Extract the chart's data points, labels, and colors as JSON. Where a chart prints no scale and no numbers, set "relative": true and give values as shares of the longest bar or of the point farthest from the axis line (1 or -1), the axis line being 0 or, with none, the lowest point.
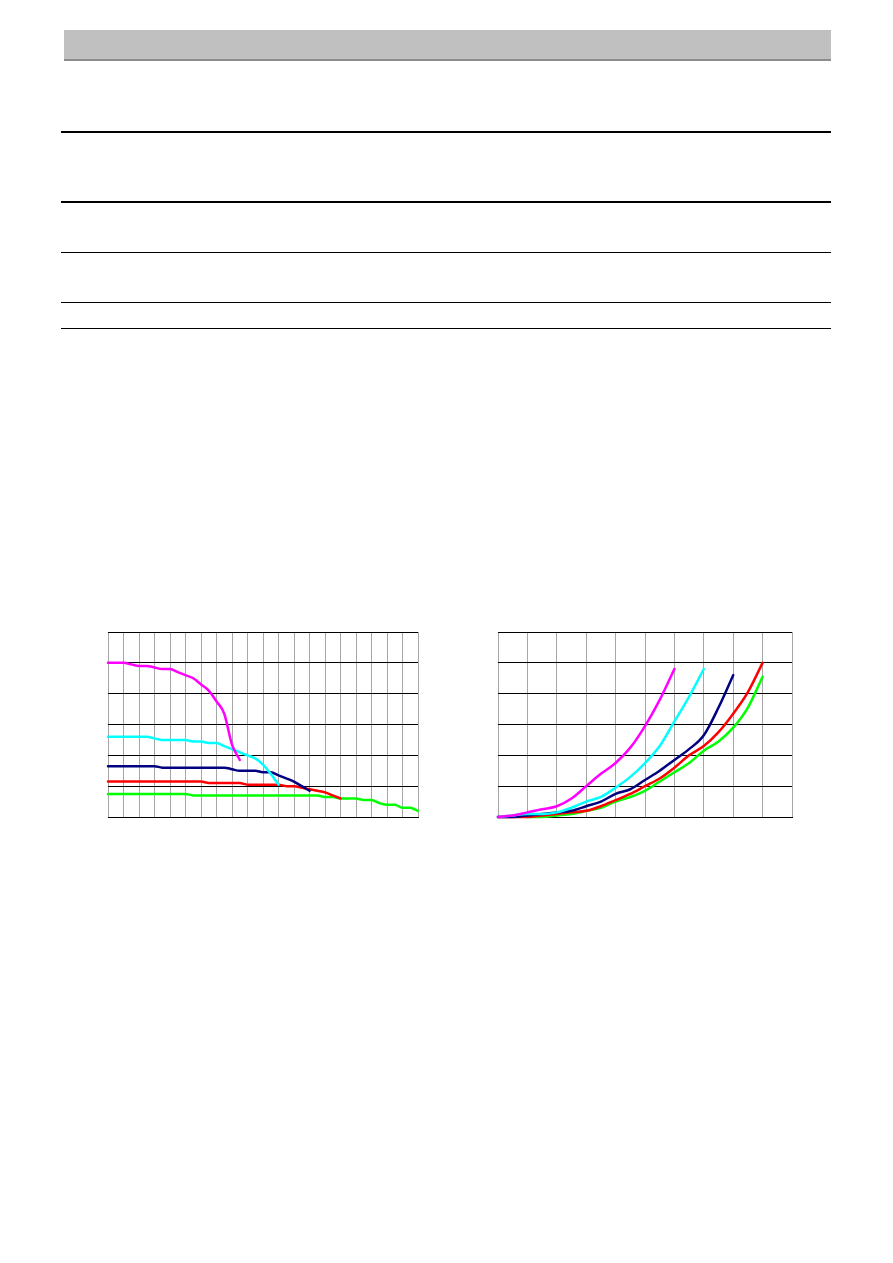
{
  "chart_data": [
    {
      "type": "line",
      "relative": true,
      "grid": true,
      "marker": "none",
      "line_style": "solid",
      "categories": [
        null,
        null,
        null,
        null,
        null,
        null,
        null,
        null,
        null,
        null,
        null,
        null,
        null,
        null,
        null,
        null,
        null,
        null,
        null,
        null,
        null,
        null,
        null,
        null,
        null,
        null,
        null,
        null,
        null,
        null,
        null,
        null,
        null,
        null,
        null,
        null,
        null,
        null,
        null,
        null,
        null
      ],
      "series": [
        {
          "color": "#ff00ff",
          "values": [
            1,
            1,
            1,
            0.99,
            0.98,
            0.98,
            0.97,
            0.96,
            0.96,
            0.94,
            0.92,
            0.9,
            0.86,
            0.82,
            0.75,
            0.67,
            0.47,
            0.37,
            null,
            null,
            null,
            null,
            null,
            null,
            null,
            null,
            null,
            null,
            null,
            null,
            null,
            null,
            null,
            null,
            null,
            null,
            null,
            null,
            null,
            null,
            null
          ]
        },
        {
          "color": "#00ffff",
          "values": [
            0.52,
            0.52,
            0.52,
            0.52,
            0.52,
            0.52,
            0.51,
            0.5,
            0.5,
            0.5,
            0.5,
            0.49,
            0.49,
            0.48,
            0.48,
            0.46,
            0.44,
            0.42,
            0.4,
            0.38,
            0.34,
            0.28,
            0.21,
            null,
            null,
            null,
            null,
            null,
            null,
            null,
            null,
            null,
            null,
            null,
            null,
            null,
            null,
            null,
            null,
            null,
            null
          ]
        },
        {
          "color": "#000080",
          "values": [
            0.33,
            0.33,
            0.33,
            0.33,
            0.33,
            0.33,
            0.33,
            0.32,
            0.32,
            0.32,
            0.32,
            0.32,
            0.32,
            0.32,
            0.32,
            0.32,
            0.31,
            0.3,
            0.3,
            0.3,
            0.29,
            0.29,
            0.27,
            0.25,
            0.23,
            0.2,
            0.17,
            null,
            null,
            null,
            null,
            null,
            null,
            null,
            null,
            null,
            null,
            null,
            null,
            null,
            null
          ]
        },
        {
          "color": "#ff0000",
          "values": [
            0.23,
            0.23,
            0.23,
            0.23,
            0.23,
            0.23,
            0.23,
            0.23,
            0.23,
            0.23,
            0.23,
            0.23,
            0.23,
            0.22,
            0.22,
            0.22,
            0.22,
            0.22,
            0.21,
            0.21,
            0.21,
            0.21,
            0.21,
            0.2,
            0.2,
            0.19,
            0.18,
            0.17,
            0.16,
            0.14,
            0.12,
            null,
            null,
            null,
            null,
            null,
            null,
            null,
            null,
            null,
            null
          ]
        },
        {
          "color": "#00ff00",
          "values": [
            0.15,
            0.15,
            0.15,
            0.15,
            0.15,
            0.15,
            0.15,
            0.15,
            0.15,
            0.15,
            0.15,
            0.14,
            0.14,
            0.14,
            0.14,
            0.14,
            0.14,
            0.14,
            0.14,
            0.14,
            0.14,
            0.14,
            0.14,
            0.14,
            0.14,
            0.14,
            0.14,
            0.14,
            0.13,
            0.13,
            0.12,
            0.12,
            0.12,
            0.11,
            0.11,
            0.09,
            0.08,
            0.08,
            0.06,
            0.06,
            0.04
          ]
        }
      ]
    },
    {
      "type": "line",
      "relative": true,
      "grid": true,
      "marker": "none",
      "line_style": "solid",
      "categories": [
        null,
        null,
        null,
        null,
        null,
        null,
        null,
        null,
        null,
        null,
        null,
        null,
        null,
        null,
        null,
        null,
        null,
        null,
        null,
        null,
        null
      ],
      "series": [
        {
          "color": "#ff00ff",
          "values": [
            0,
            0.01,
            0.03,
            0.05,
            0.07,
            0.12,
            0.2,
            0.28,
            0.35,
            0.45,
            0.59,
            0.76,
            0.96,
            null,
            null,
            null,
            null,
            null,
            null,
            null,
            null
          ]
        },
        {
          "color": "#00ffff",
          "values": [
            0,
            0.01,
            0.02,
            0.02,
            0.03,
            0.06,
            0.1,
            0.13,
            0.19,
            0.26,
            0.35,
            0.46,
            0.62,
            0.78,
            0.96,
            null,
            null,
            null,
            null,
            null,
            null
          ]
        },
        {
          "color": "#000080",
          "values": [
            0,
            0,
            0.01,
            0.02,
            0.03,
            0.04,
            0.07,
            0.1,
            0.15,
            0.18,
            0.24,
            0.3,
            0.37,
            0.44,
            0.53,
            0.71,
            0.92,
            null,
            null,
            null,
            null
          ]
        },
        {
          "color": "#ff0000",
          "values": [
            0,
            0,
            0,
            0.01,
            0.02,
            0.03,
            0.04,
            0.07,
            0.11,
            0.15,
            0.2,
            0.25,
            0.32,
            0.4,
            0.46,
            0.55,
            0.67,
            0.81,
            1,
            null,
            null
          ]
        },
        {
          "color": "#00ff00",
          "values": [
            null,
            null,
            0,
            0,
            0.01,
            0.02,
            0.04,
            0.06,
            0.1,
            0.13,
            0.17,
            0.23,
            0.29,
            0.35,
            0.43,
            0.49,
            0.58,
            0.71,
            0.91,
            null,
            null
          ]
        }
      ]
    }
  ]
}
